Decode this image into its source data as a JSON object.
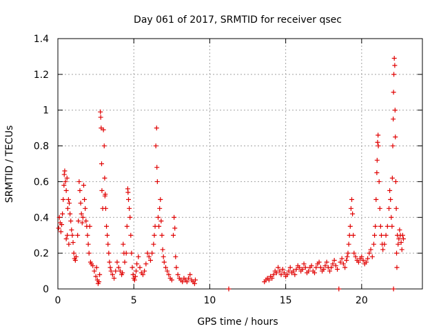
{
  "chart_data": {
    "type": "scatter",
    "title": "Day 061 of 2017, SRMTID for receiver qsec",
    "xlabel": "GPS time / hours",
    "ylabel": "SRMTID / TECUs",
    "xlim": [
      0,
      24
    ],
    "ylim": [
      0,
      1.4
    ],
    "xticks": [
      0,
      5,
      10,
      15,
      20
    ],
    "yticks": [
      0,
      0.2,
      0.4,
      0.6,
      0.8,
      1,
      1.2,
      1.4
    ],
    "ytick_labels": [
      "0",
      "0.2",
      "0.4",
      "0.6",
      "0.8",
      "1",
      "1.2",
      "1.4"
    ],
    "grid": true,
    "marker": "+",
    "color": "#e00000",
    "series": [
      {
        "name": "SRMTID",
        "points": [
          [
            0.05,
            0.34
          ],
          [
            0.1,
            0.4
          ],
          [
            0.15,
            0.37
          ],
          [
            0.2,
            0.32
          ],
          [
            0.25,
            0.36
          ],
          [
            0.3,
            0.42
          ],
          [
            0.35,
            0.5
          ],
          [
            0.4,
            0.58
          ],
          [
            0.42,
            0.64
          ],
          [
            0.45,
            0.66
          ],
          [
            0.5,
            0.6
          ],
          [
            0.55,
            0.55
          ],
          [
            0.55,
            0.28
          ],
          [
            0.6,
            0.62
          ],
          [
            0.62,
            0.3
          ],
          [
            0.65,
            0.45
          ],
          [
            0.7,
            0.5
          ],
          [
            0.72,
            0.25
          ],
          [
            0.75,
            0.48
          ],
          [
            0.8,
            0.42
          ],
          [
            0.85,
            0.38
          ],
          [
            0.9,
            0.33
          ],
          [
            0.95,
            0.3
          ],
          [
            1.0,
            0.26
          ],
          [
            1.05,
            0.2
          ],
          [
            1.1,
            0.17
          ],
          [
            1.15,
            0.16
          ],
          [
            1.2,
            0.18
          ],
          [
            1.3,
            0.3
          ],
          [
            1.35,
            0.38
          ],
          [
            1.4,
            0.6
          ],
          [
            1.45,
            0.55
          ],
          [
            1.5,
            0.48
          ],
          [
            1.55,
            0.42
          ],
          [
            1.6,
            0.37
          ],
          [
            1.65,
            0.4
          ],
          [
            1.7,
            0.58
          ],
          [
            1.75,
            0.5
          ],
          [
            1.8,
            0.45
          ],
          [
            1.85,
            0.38
          ],
          [
            1.9,
            0.35
          ],
          [
            1.95,
            0.3
          ],
          [
            2.0,
            0.25
          ],
          [
            2.05,
            0.2
          ],
          [
            2.1,
            0.35
          ],
          [
            2.15,
            0.15
          ],
          [
            2.2,
            0.14
          ],
          [
            2.3,
            0.13
          ],
          [
            2.4,
            0.1
          ],
          [
            2.5,
            0.07
          ],
          [
            2.55,
            0.12
          ],
          [
            2.6,
            0.05
          ],
          [
            2.65,
            0.03
          ],
          [
            2.7,
            0.04
          ],
          [
            2.75,
            0.08
          ],
          [
            2.8,
            0.99
          ],
          [
            2.82,
            0.96
          ],
          [
            2.85,
            0.9
          ],
          [
            2.88,
            0.7
          ],
          [
            2.9,
            0.55
          ],
          [
            2.95,
            0.45
          ],
          [
            3.0,
            0.89
          ],
          [
            3.05,
            0.8
          ],
          [
            3.08,
            0.62
          ],
          [
            3.1,
            0.52
          ],
          [
            3.12,
            0.53
          ],
          [
            3.15,
            0.45
          ],
          [
            3.2,
            0.35
          ],
          [
            3.25,
            0.3
          ],
          [
            3.3,
            0.25
          ],
          [
            3.35,
            0.2
          ],
          [
            3.4,
            0.15
          ],
          [
            3.45,
            0.12
          ],
          [
            3.5,
            0.1
          ],
          [
            3.6,
            0.08
          ],
          [
            3.7,
            0.06
          ],
          [
            3.8,
            0.1
          ],
          [
            3.9,
            0.15
          ],
          [
            4.0,
            0.12
          ],
          [
            4.1,
            0.1
          ],
          [
            4.2,
            0.08
          ],
          [
            4.25,
            0.09
          ],
          [
            4.3,
            0.25
          ],
          [
            4.35,
            0.2
          ],
          [
            4.4,
            0.15
          ],
          [
            4.5,
            0.2
          ],
          [
            4.55,
            0.35
          ],
          [
            4.6,
            0.56
          ],
          [
            4.62,
            0.54
          ],
          [
            4.65,
            0.5
          ],
          [
            4.7,
            0.45
          ],
          [
            4.75,
            0.4
          ],
          [
            4.8,
            0.3
          ],
          [
            4.85,
            0.2
          ],
          [
            4.9,
            0.12
          ],
          [
            4.95,
            0.08
          ],
          [
            5.0,
            0.06
          ],
          [
            5.05,
            0.05
          ],
          [
            5.1,
            0.07
          ],
          [
            5.15,
            0.1
          ],
          [
            5.2,
            0.14
          ],
          [
            5.3,
            0.18
          ],
          [
            5.4,
            0.12
          ],
          [
            5.5,
            0.09
          ],
          [
            5.6,
            0.08
          ],
          [
            5.7,
            0.1
          ],
          [
            5.8,
            0.14
          ],
          [
            5.9,
            0.2
          ],
          [
            6.0,
            0.18
          ],
          [
            6.1,
            0.16
          ],
          [
            6.2,
            0.2
          ],
          [
            6.3,
            0.25
          ],
          [
            6.35,
            0.3
          ],
          [
            6.4,
            0.35
          ],
          [
            6.45,
            0.8
          ],
          [
            6.5,
            0.9
          ],
          [
            6.52,
            0.68
          ],
          [
            6.55,
            0.6
          ],
          [
            6.6,
            0.4
          ],
          [
            6.65,
            0.35
          ],
          [
            6.7,
            0.45
          ],
          [
            6.75,
            0.5
          ],
          [
            6.8,
            0.38
          ],
          [
            6.85,
            0.3
          ],
          [
            6.9,
            0.22
          ],
          [
            6.95,
            0.18
          ],
          [
            7.0,
            0.15
          ],
          [
            7.1,
            0.12
          ],
          [
            7.2,
            0.1
          ],
          [
            7.3,
            0.08
          ],
          [
            7.4,
            0.06
          ],
          [
            7.5,
            0.05
          ],
          [
            7.6,
            0.3
          ],
          [
            7.65,
            0.4
          ],
          [
            7.7,
            0.34
          ],
          [
            7.75,
            0.18
          ],
          [
            7.8,
            0.12
          ],
          [
            7.9,
            0.08
          ],
          [
            8.0,
            0.06
          ],
          [
            8.1,
            0.05
          ],
          [
            8.2,
            0.04
          ],
          [
            8.3,
            0.06
          ],
          [
            8.4,
            0.05
          ],
          [
            8.5,
            0.04
          ],
          [
            8.6,
            0.06
          ],
          [
            8.7,
            0.08
          ],
          [
            8.8,
            0.05
          ],
          [
            8.9,
            0.04
          ],
          [
            9.0,
            0.03
          ],
          [
            9.05,
            0.05
          ],
          [
            11.25,
            0.0
          ],
          [
            13.6,
            0.04
          ],
          [
            13.7,
            0.05
          ],
          [
            13.8,
            0.06
          ],
          [
            13.9,
            0.05
          ],
          [
            14.0,
            0.07
          ],
          [
            14.1,
            0.06
          ],
          [
            14.2,
            0.08
          ],
          [
            14.3,
            0.1
          ],
          [
            14.4,
            0.09
          ],
          [
            14.5,
            0.12
          ],
          [
            14.6,
            0.1
          ],
          [
            14.7,
            0.08
          ],
          [
            14.8,
            0.11
          ],
          [
            14.9,
            0.09
          ],
          [
            15.0,
            0.07
          ],
          [
            15.1,
            0.08
          ],
          [
            15.2,
            0.1
          ],
          [
            15.3,
            0.12
          ],
          [
            15.4,
            0.09
          ],
          [
            15.5,
            0.1
          ],
          [
            15.6,
            0.08
          ],
          [
            15.7,
            0.11
          ],
          [
            15.8,
            0.13
          ],
          [
            15.9,
            0.12
          ],
          [
            16.0,
            0.1
          ],
          [
            16.1,
            0.11
          ],
          [
            16.2,
            0.14
          ],
          [
            16.3,
            0.12
          ],
          [
            16.4,
            0.09
          ],
          [
            16.5,
            0.1
          ],
          [
            16.6,
            0.12
          ],
          [
            16.7,
            0.13
          ],
          [
            16.8,
            0.1
          ],
          [
            16.9,
            0.09
          ],
          [
            17.0,
            0.12
          ],
          [
            17.1,
            0.14
          ],
          [
            17.2,
            0.15
          ],
          [
            17.3,
            0.12
          ],
          [
            17.4,
            0.1
          ],
          [
            17.5,
            0.11
          ],
          [
            17.6,
            0.13
          ],
          [
            17.7,
            0.15
          ],
          [
            17.8,
            0.12
          ],
          [
            17.9,
            0.1
          ],
          [
            18.0,
            0.12
          ],
          [
            18.1,
            0.14
          ],
          [
            18.2,
            0.16
          ],
          [
            18.3,
            0.13
          ],
          [
            18.4,
            0.11
          ],
          [
            18.5,
            0.0
          ],
          [
            18.6,
            0.15
          ],
          [
            18.7,
            0.17
          ],
          [
            18.8,
            0.14
          ],
          [
            18.9,
            0.12
          ],
          [
            19.0,
            0.16
          ],
          [
            19.05,
            0.18
          ],
          [
            19.1,
            0.2
          ],
          [
            19.15,
            0.25
          ],
          [
            19.2,
            0.3
          ],
          [
            19.25,
            0.35
          ],
          [
            19.3,
            0.45
          ],
          [
            19.35,
            0.5
          ],
          [
            19.4,
            0.42
          ],
          [
            19.45,
            0.3
          ],
          [
            19.5,
            0.2
          ],
          [
            19.6,
            0.18
          ],
          [
            19.7,
            0.16
          ],
          [
            19.8,
            0.15
          ],
          [
            19.9,
            0.17
          ],
          [
            20.0,
            0.18
          ],
          [
            20.1,
            0.16
          ],
          [
            20.2,
            0.14
          ],
          [
            20.3,
            0.15
          ],
          [
            20.4,
            0.17
          ],
          [
            20.5,
            0.2
          ],
          [
            20.6,
            0.22
          ],
          [
            20.7,
            0.18
          ],
          [
            20.8,
            0.25
          ],
          [
            20.85,
            0.3
          ],
          [
            20.9,
            0.35
          ],
          [
            20.95,
            0.5
          ],
          [
            21.0,
            0.65
          ],
          [
            21.02,
            0.72
          ],
          [
            21.05,
            0.82
          ],
          [
            21.08,
            0.86
          ],
          [
            21.1,
            0.8
          ],
          [
            21.15,
            0.6
          ],
          [
            21.2,
            0.45
          ],
          [
            21.25,
            0.35
          ],
          [
            21.3,
            0.3
          ],
          [
            21.35,
            0.25
          ],
          [
            21.4,
            0.22
          ],
          [
            21.5,
            0.25
          ],
          [
            21.6,
            0.3
          ],
          [
            21.7,
            0.35
          ],
          [
            21.8,
            0.45
          ],
          [
            21.85,
            0.55
          ],
          [
            21.9,
            0.5
          ],
          [
            21.95,
            0.4
          ],
          [
            22.0,
            0.35
          ],
          [
            22.02,
            0.62
          ],
          [
            22.05,
            0.8
          ],
          [
            22.08,
            0.95
          ],
          [
            22.1,
            1.1
          ],
          [
            22.12,
            1.2
          ],
          [
            22.15,
            1.29
          ],
          [
            22.18,
            1.25
          ],
          [
            22.2,
            1.0
          ],
          [
            22.22,
            0.85
          ],
          [
            22.25,
            0.6
          ],
          [
            22.28,
            0.45
          ],
          [
            22.3,
            0.2
          ],
          [
            22.32,
            0.12
          ],
          [
            22.35,
            0.3
          ],
          [
            22.4,
            0.25
          ],
          [
            22.45,
            0.28
          ],
          [
            22.5,
            0.33
          ],
          [
            22.55,
            0.3
          ],
          [
            22.6,
            0.26
          ],
          [
            22.65,
            0.22
          ],
          [
            22.7,
            0.3
          ],
          [
            22.75,
            0.28
          ],
          [
            22.1,
            0.0
          ]
        ]
      }
    ]
  }
}
